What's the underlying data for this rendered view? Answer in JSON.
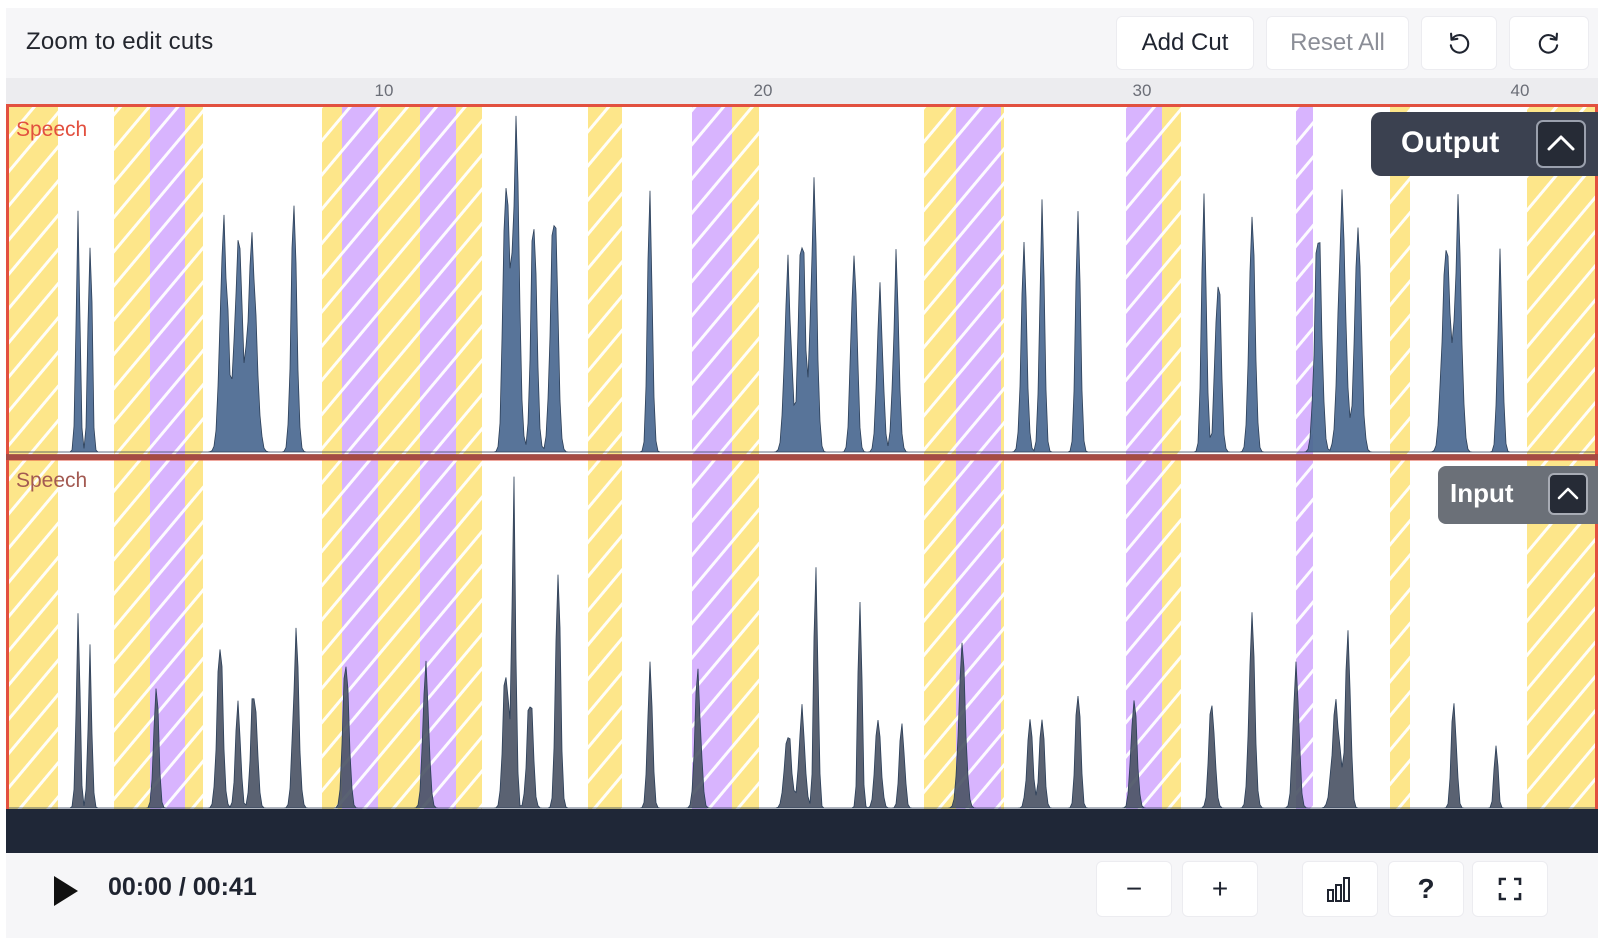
{
  "toolbar": {
    "title": "Zoom to edit cuts",
    "add_cut_label": "Add Cut",
    "reset_all_label": "Reset All",
    "undo_icon": "undo-icon",
    "redo_icon": "redo-icon"
  },
  "ruler": {
    "ticks": [
      "10",
      "20",
      "30",
      "40"
    ]
  },
  "tracks": {
    "output": {
      "tab_label": "Output",
      "region_label": "Speech"
    },
    "input": {
      "tab_label": "Input",
      "region_label": "Speech"
    }
  },
  "player": {
    "time": "00:00 / 00:41",
    "play_icon": "play-icon",
    "zoom_out_label": "−",
    "zoom_in_label": "+",
    "help_label": "?",
    "chart_icon": "bar-chart-icon",
    "fullscreen_icon": "fullscreen-icon"
  },
  "colors": {
    "speech_border": "#e2503f",
    "cut_yellow": "#fde68a",
    "cut_purple": "#d8b4fe",
    "output_wave": "#4a6890",
    "input_wave": "#4c5566",
    "band": "#1f2737"
  }
}
